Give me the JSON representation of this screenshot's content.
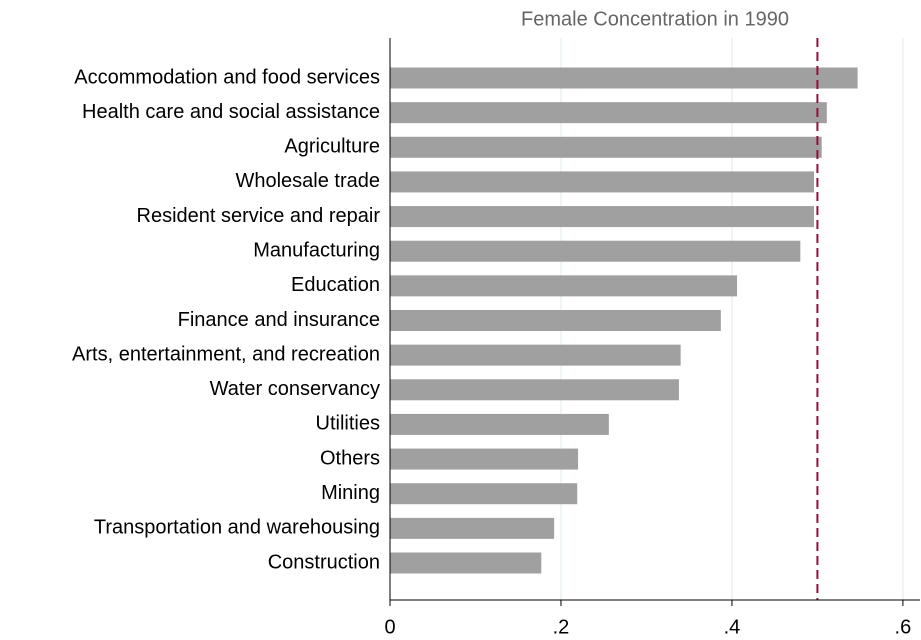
{
  "chart_data": {
    "type": "barh",
    "title": "Female Concentration in 1990",
    "categories": [
      "Accommodation and food services",
      "Health care and social assistance",
      "Agriculture",
      "Wholesale trade",
      "Resident service and repair",
      "Manufacturing",
      "Education",
      "Finance and insurance",
      "Arts, entertainment, and recreation",
      "Water conservancy",
      "Utilities",
      "Others",
      "Mining",
      "Transportation and warehousing",
      "Construction"
    ],
    "values": [
      0.547,
      0.511,
      0.505,
      0.496,
      0.496,
      0.48,
      0.406,
      0.387,
      0.34,
      0.338,
      0.256,
      0.22,
      0.219,
      0.192,
      0.177
    ],
    "color": "#a0a0a0",
    "xlim": [
      0,
      0.62
    ],
    "xticks": [
      0,
      {
        "value": 0.2,
        "label": ".2"
      },
      {
        "value": 0.4,
        "label": ".4"
      },
      {
        "value": 0.6,
        "label": ".6"
      }
    ],
    "grid": true,
    "reference_line": {
      "value": 0.5,
      "color": "#990c3a"
    }
  }
}
